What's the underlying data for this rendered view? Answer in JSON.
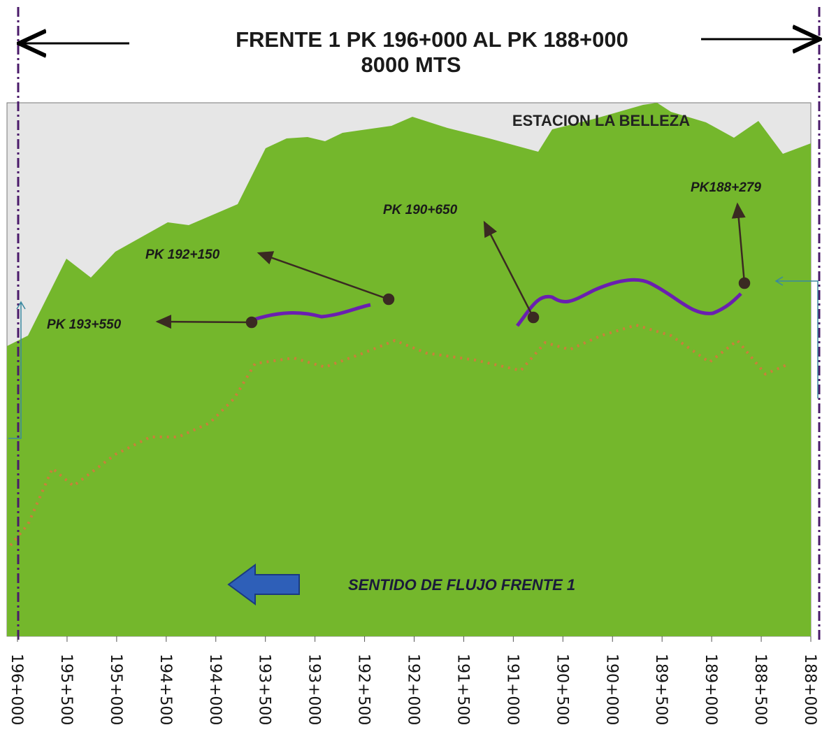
{
  "header": {
    "title": "FRENTE 1 PK 196+000 AL PK 188+000",
    "subtitle": "8000 MTS"
  },
  "station": "ESTACION LA BELLEZA",
  "annotations": [
    "PK 193+550",
    "PK 192+150",
    "PK 190+650",
    "PK188+279"
  ],
  "flow": "SENTIDO DE FLUJO FRENTE 1",
  "x_labels": [
    "196+000",
    "195+500",
    "195+000",
    "194+500",
    "194+000",
    "193+500",
    "193+000",
    "192+500",
    "192+000",
    "191+500",
    "191+000",
    "190+500",
    "190+000",
    "189+500",
    "189+000",
    "188+500",
    "188+000"
  ]
}
